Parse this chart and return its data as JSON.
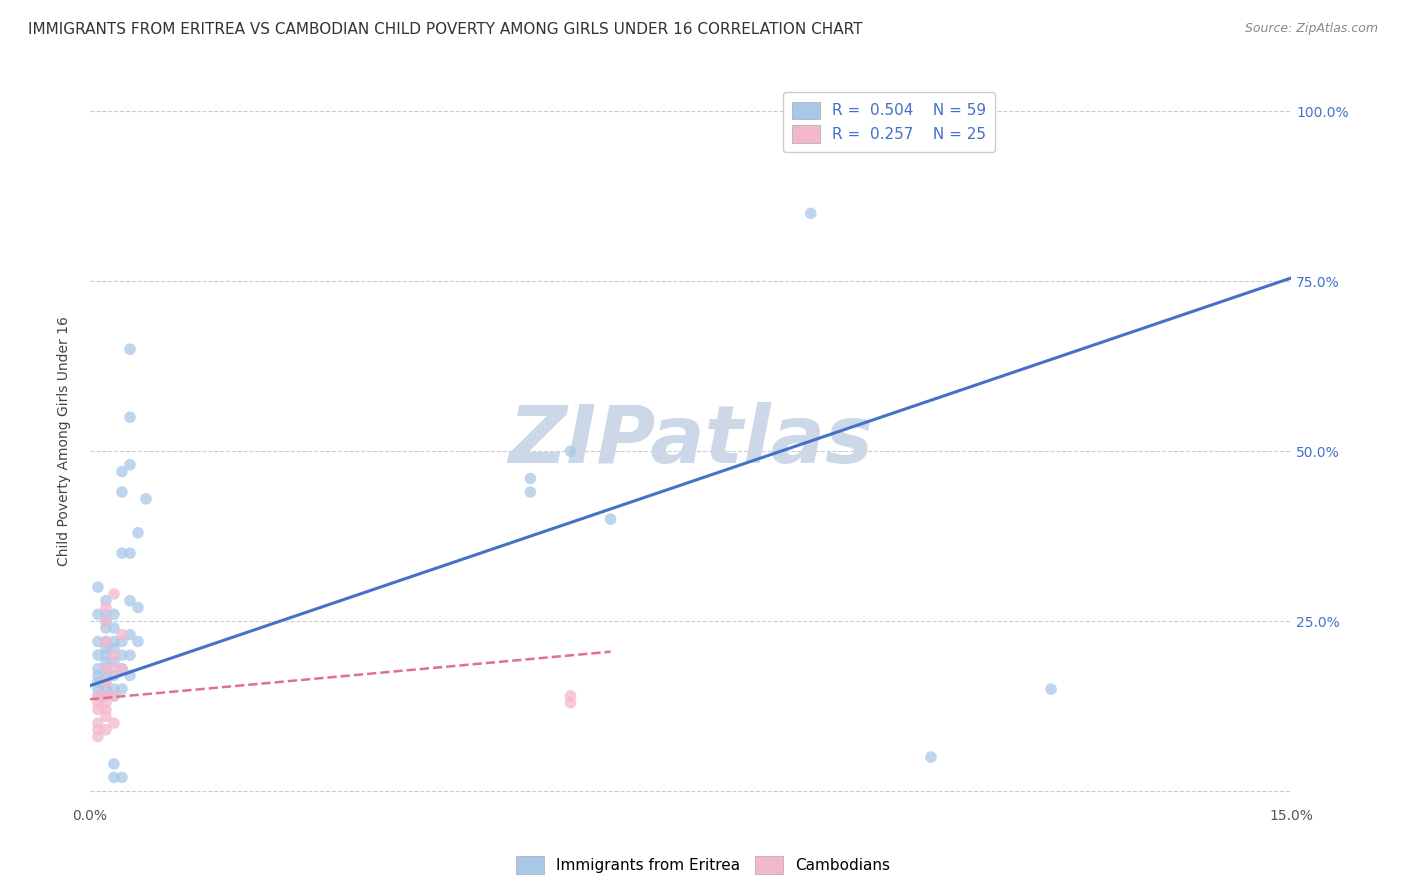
{
  "title": "IMMIGRANTS FROM ERITREA VS CAMBODIAN CHILD POVERTY AMONG GIRLS UNDER 16 CORRELATION CHART",
  "source": "Source: ZipAtlas.com",
  "ylabel": "Child Poverty Among Girls Under 16",
  "xlim": [
    0.0,
    0.15
  ],
  "ylim": [
    -0.02,
    1.05
  ],
  "xticks": [
    0.0,
    0.03,
    0.06,
    0.09,
    0.12,
    0.15
  ],
  "xticklabels": [
    "0.0%",
    "",
    "",
    "",
    "",
    "15.0%"
  ],
  "ytick_positions": [
    0.0,
    0.25,
    0.5,
    0.75,
    1.0
  ],
  "right_yticklabels": [
    "",
    "25.0%",
    "50.0%",
    "75.0%",
    "100.0%"
  ],
  "watermark": "ZIPatlas",
  "blue_scatter": [
    [
      0.001,
      0.3
    ],
    [
      0.001,
      0.26
    ],
    [
      0.001,
      0.22
    ],
    [
      0.001,
      0.2
    ],
    [
      0.001,
      0.18
    ],
    [
      0.001,
      0.17
    ],
    [
      0.001,
      0.16
    ],
    [
      0.001,
      0.15
    ],
    [
      0.001,
      0.14
    ],
    [
      0.002,
      0.28
    ],
    [
      0.002,
      0.26
    ],
    [
      0.002,
      0.25
    ],
    [
      0.002,
      0.24
    ],
    [
      0.002,
      0.22
    ],
    [
      0.002,
      0.21
    ],
    [
      0.002,
      0.2
    ],
    [
      0.002,
      0.19
    ],
    [
      0.002,
      0.18
    ],
    [
      0.002,
      0.17
    ],
    [
      0.002,
      0.16
    ],
    [
      0.002,
      0.15
    ],
    [
      0.002,
      0.14
    ],
    [
      0.003,
      0.26
    ],
    [
      0.003,
      0.24
    ],
    [
      0.003,
      0.22
    ],
    [
      0.003,
      0.21
    ],
    [
      0.003,
      0.19
    ],
    [
      0.003,
      0.17
    ],
    [
      0.003,
      0.15
    ],
    [
      0.003,
      0.14
    ],
    [
      0.003,
      0.04
    ],
    [
      0.003,
      0.02
    ],
    [
      0.004,
      0.47
    ],
    [
      0.004,
      0.44
    ],
    [
      0.004,
      0.35
    ],
    [
      0.004,
      0.22
    ],
    [
      0.004,
      0.2
    ],
    [
      0.004,
      0.18
    ],
    [
      0.004,
      0.15
    ],
    [
      0.004,
      0.02
    ],
    [
      0.005,
      0.65
    ],
    [
      0.005,
      0.55
    ],
    [
      0.005,
      0.48
    ],
    [
      0.005,
      0.35
    ],
    [
      0.005,
      0.28
    ],
    [
      0.005,
      0.23
    ],
    [
      0.005,
      0.2
    ],
    [
      0.005,
      0.17
    ],
    [
      0.006,
      0.38
    ],
    [
      0.006,
      0.27
    ],
    [
      0.006,
      0.22
    ],
    [
      0.007,
      0.43
    ],
    [
      0.055,
      0.46
    ],
    [
      0.055,
      0.44
    ],
    [
      0.06,
      0.5
    ],
    [
      0.065,
      0.4
    ],
    [
      0.09,
      0.85
    ],
    [
      0.105,
      0.05
    ],
    [
      0.12,
      0.15
    ]
  ],
  "pink_scatter": [
    [
      0.001,
      0.14
    ],
    [
      0.001,
      0.13
    ],
    [
      0.001,
      0.12
    ],
    [
      0.001,
      0.1
    ],
    [
      0.001,
      0.09
    ],
    [
      0.001,
      0.08
    ],
    [
      0.002,
      0.27
    ],
    [
      0.002,
      0.25
    ],
    [
      0.002,
      0.22
    ],
    [
      0.002,
      0.18
    ],
    [
      0.002,
      0.16
    ],
    [
      0.002,
      0.14
    ],
    [
      0.002,
      0.13
    ],
    [
      0.002,
      0.12
    ],
    [
      0.002,
      0.11
    ],
    [
      0.002,
      0.09
    ],
    [
      0.003,
      0.29
    ],
    [
      0.003,
      0.2
    ],
    [
      0.003,
      0.18
    ],
    [
      0.003,
      0.14
    ],
    [
      0.003,
      0.1
    ],
    [
      0.004,
      0.23
    ],
    [
      0.004,
      0.18
    ],
    [
      0.06,
      0.14
    ],
    [
      0.06,
      0.13
    ]
  ],
  "blue_line_x": [
    0.0,
    0.15
  ],
  "blue_line_y": [
    0.155,
    0.755
  ],
  "pink_line_x": [
    0.0,
    0.065
  ],
  "pink_line_y": [
    0.135,
    0.205
  ],
  "scatter_color_blue": "#a8c8e8",
  "scatter_color_pink": "#f4b8cc",
  "line_color_blue": "#4472c4",
  "line_color_pink": "#e07090",
  "background_color": "#ffffff",
  "grid_color": "#cccccc",
  "title_color": "#333333",
  "watermark_color": "#ccd8e8",
  "title_fontsize": 11,
  "source_fontsize": 9,
  "axis_label_fontsize": 10,
  "tick_fontsize": 10,
  "legend_fontsize": 11,
  "marker_size": 70
}
